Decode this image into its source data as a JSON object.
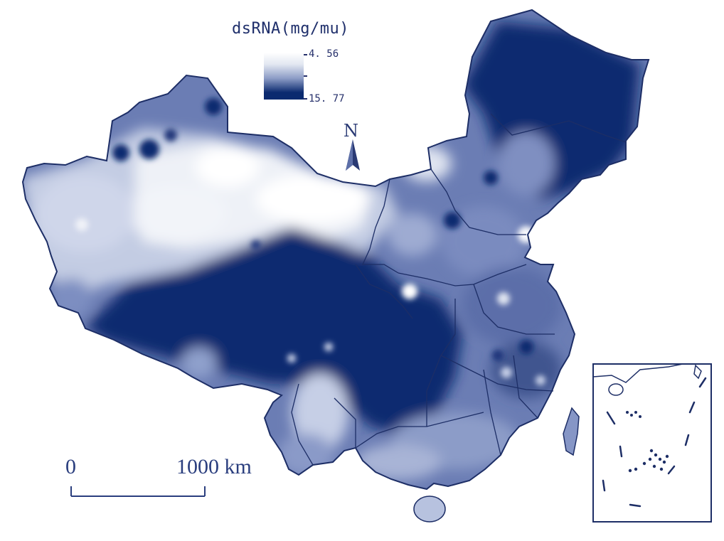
{
  "legend": {
    "title": "dsRNA(mg/mu)",
    "min_label": "4. 56",
    "max_label": "15. 77",
    "min_value": 4.56,
    "max_value": 15.77,
    "color_low": "#ffffff",
    "color_high": "#0b2a6f"
  },
  "north_arrow": {
    "label": "N"
  },
  "scale_bar": {
    "start_label": "0",
    "end_label": "1000 km"
  },
  "colors": {
    "dark_navy": "#0b2a6f",
    "mid_blue": "#5a6ca8",
    "light_blue": "#a9b5d6",
    "pale": "#e6eaf3",
    "boundary": "#1d2e66"
  }
}
